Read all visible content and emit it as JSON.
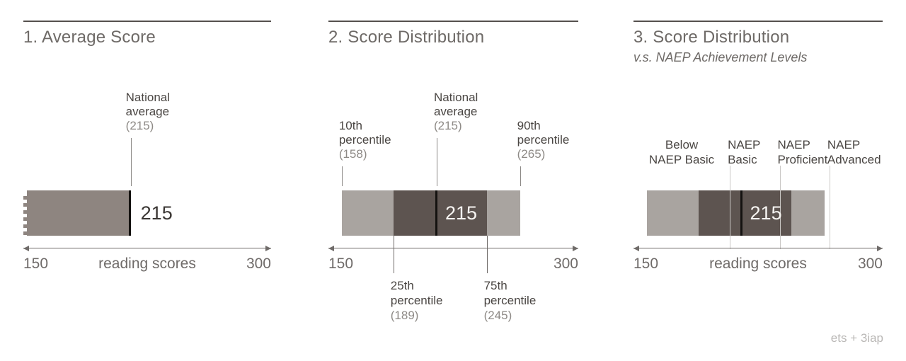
{
  "axis": {
    "min": 150,
    "max": 300,
    "min_label": "150",
    "max_label": "300",
    "title": "reading scores"
  },
  "credit": "ets + 3iap",
  "colors": {
    "bar_single": "#8e8580",
    "bar_light": "#a9a4a0",
    "bar_dark": "#5d5450",
    "marker_black": "#141210",
    "level_line": "#cac7c5",
    "leader_line": "#8b8885",
    "below_leader_line": "#6f6b68"
  },
  "panel1": {
    "title": "1. Average Score",
    "average_label": {
      "line1": "National",
      "line2": "average",
      "value_text": "(215)",
      "value": 215
    },
    "bar": {
      "start": 150,
      "end": 215
    },
    "bar_value_text": "215"
  },
  "panel2": {
    "title": "2. Score Distribution",
    "above_labels": [
      {
        "line1": "10th",
        "line2": "percentile",
        "value_text": "(158)",
        "value": 158
      },
      {
        "line1": "National",
        "line2": "average",
        "value_text": "(215)",
        "value": 215
      },
      {
        "line1": "90th",
        "line2": "percentile",
        "value_text": "(265)",
        "value": 265
      }
    ],
    "below_labels": [
      {
        "line1": "25th",
        "line2": "percentile",
        "value_text": "(189)",
        "value": 189
      },
      {
        "line1": "75th",
        "line2": "percentile",
        "value_text": "(245)",
        "value": 245
      }
    ],
    "dist": {
      "p10": 158,
      "p25": 189,
      "mean": 215,
      "p75": 245,
      "p90": 265
    },
    "bar_value_text": "215"
  },
  "panel3": {
    "title": "3. Score Distribution",
    "subtitle": "v.s. NAEP Achievement Levels",
    "level_labels": [
      {
        "line1": "Below",
        "line2": "NAEP Basic",
        "region_start": 150,
        "region_end": 208
      },
      {
        "line1": "NAEP",
        "line2": "Basic",
        "value": 208
      },
      {
        "line1": "NAEP",
        "line2": "Proficient",
        "value": 238
      },
      {
        "line1": "NAEP",
        "line2": "Advanced",
        "value": 268
      }
    ],
    "dist": {
      "p10": 158,
      "p25": 189,
      "mean": 215,
      "p75": 245,
      "p90": 265
    },
    "bar_value_text": "215"
  },
  "chart_data": [
    {
      "type": "bar",
      "title": "1. Average Score",
      "orientation": "horizontal",
      "xlabel": "reading scores",
      "xlim": [
        150,
        300
      ],
      "values": [
        215
      ],
      "annotations": [
        "National average (215)"
      ],
      "notes": "single bar from truncated axis start 150 to national average 215"
    },
    {
      "type": "bar",
      "title": "2. Score Distribution",
      "orientation": "horizontal",
      "xlabel": "",
      "xlim": [
        150,
        300
      ],
      "distribution": {
        "p10": 158,
        "p25": 189,
        "mean": 215,
        "p75": 245,
        "p90": 265
      },
      "annotations": [
        "10th percentile (158)",
        "25th percentile (189)",
        "National average (215)",
        "75th percentile (245)",
        "90th percentile (265)"
      ]
    },
    {
      "type": "bar",
      "title": "3. Score Distribution",
      "subtitle": "v.s. NAEP Achievement Levels",
      "orientation": "horizontal",
      "xlabel": "reading scores",
      "xlim": [
        150,
        300
      ],
      "distribution": {
        "p10": 158,
        "p25": 189,
        "mean": 215,
        "p75": 245,
        "p90": 265
      },
      "reference_lines": [
        {
          "label": "NAEP Basic",
          "value": 208
        },
        {
          "label": "NAEP Proficient",
          "value": 238
        },
        {
          "label": "NAEP Advanced",
          "value": 268
        }
      ],
      "annotations": [
        "Below NAEP Basic",
        "NAEP Basic",
        "NAEP Proficient",
        "NAEP Advanced"
      ]
    }
  ]
}
